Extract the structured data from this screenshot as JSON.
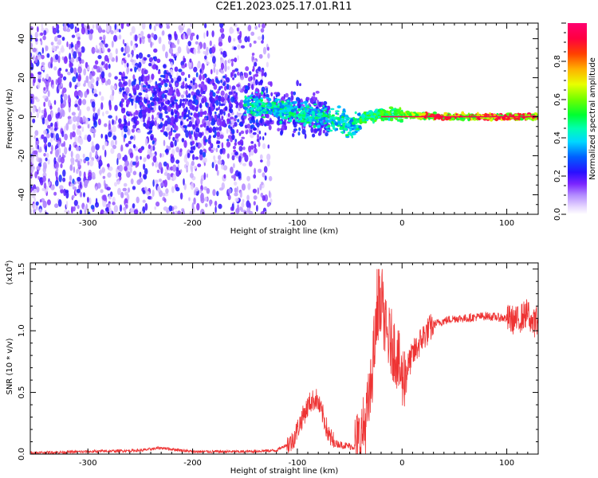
{
  "title": "C2E1.2023.025.17.01.R11",
  "chart_data": [
    {
      "type": "heatmap",
      "title": "",
      "xlabel": "Height of straight line (km)",
      "ylabel": "Frequency (Hz)",
      "xlim": [
        -355,
        130
      ],
      "ylim": [
        -50,
        48
      ],
      "xticks": [
        -300,
        -200,
        -100,
        0,
        100
      ],
      "yticks": [
        -40,
        -20,
        0,
        20,
        40
      ],
      "colorbar": {
        "label": "Normalized spectral amplitude",
        "range": [
          0,
          1
        ],
        "ticks": [
          "0.0",
          "0.2",
          "0.4",
          "0.6",
          "0.8"
        ],
        "ticks_values": [
          0.0,
          0.2,
          0.4,
          0.6,
          0.8
        ]
      },
      "ridge": [
        {
          "x": -150,
          "y": 6
        },
        {
          "x": -120,
          "y": 4
        },
        {
          "x": -100,
          "y": 2
        },
        {
          "x": -80,
          "y": 0
        },
        {
          "x": -60,
          "y": -2
        },
        {
          "x": -45,
          "y": -5
        },
        {
          "x": -35,
          "y": 0
        },
        {
          "x": -20,
          "y": 1
        },
        {
          "x": 0,
          "y": 1
        },
        {
          "x": 50,
          "y": 0
        },
        {
          "x": 130,
          "y": 0
        }
      ]
    },
    {
      "type": "line",
      "title": "",
      "xlabel": "Height of straight line (km)",
      "ylabel": "SNR (10 * v/v)",
      "yscale_note": "(x10",
      "yscale_exp": "4",
      "xlim": [
        -355,
        130
      ],
      "ylim": [
        0,
        1.55
      ],
      "xticks": [
        -300,
        -200,
        -100,
        0,
        100
      ],
      "yticks": [
        "0.0",
        "0.5",
        "1.0",
        "1.5"
      ],
      "yticks_values": [
        0.0,
        0.5,
        1.0,
        1.5
      ],
      "series_color": "#ee3333",
      "series": [
        {
          "name": "",
          "x": [
            -355,
            -300,
            -250,
            -230,
            -220,
            -200,
            -150,
            -120,
            -105,
            -95,
            -88,
            -82,
            -75,
            -70,
            -65,
            -55,
            -45,
            -40,
            -35,
            -30,
            -27,
            -25,
            -22,
            -20,
            -15,
            -10,
            -5,
            0,
            10,
            20,
            30,
            40,
            50,
            60,
            80,
            100,
            110,
            120,
            125,
            130
          ],
          "y": [
            0.01,
            0.02,
            0.03,
            0.05,
            0.04,
            0.02,
            0.02,
            0.03,
            0.1,
            0.3,
            0.42,
            0.45,
            0.3,
            0.15,
            0.09,
            0.07,
            0.06,
            0.12,
            0.25,
            0.5,
            0.85,
            0.95,
            1.15,
            1.3,
            0.95,
            0.9,
            0.8,
            0.6,
            0.8,
            0.95,
            1.05,
            1.08,
            1.1,
            1.1,
            1.12,
            1.1,
            1.08,
            1.15,
            1.05,
            1.1
          ]
        }
      ]
    }
  ]
}
